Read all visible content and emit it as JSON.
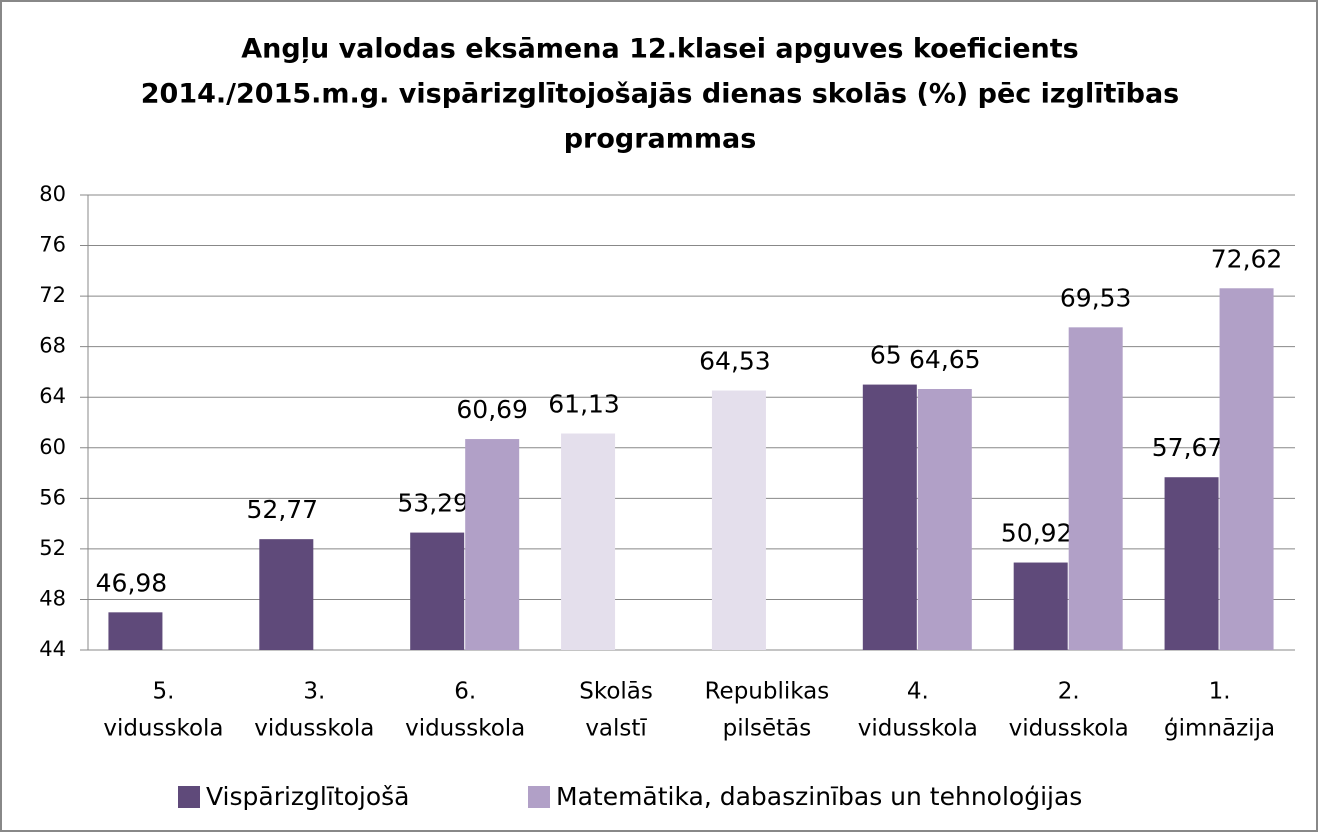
{
  "chart_data": {
    "type": "bar",
    "title": [
      "Angļu valodas eksāmena 12.klasei apguves koeficients",
      "2014./2015.m.g. vispārizglītojošajās dienas skolās (%) pēc izglītības",
      "programmas"
    ],
    "categories": [
      [
        "5.",
        "vidusskola"
      ],
      [
        "3.",
        "vidusskola"
      ],
      [
        "6.",
        "vidusskola"
      ],
      [
        "Skolās",
        "valstī"
      ],
      [
        "Republikas",
        "pilsētās"
      ],
      [
        "4.",
        "vidusskola"
      ],
      [
        "2.",
        "vidusskola"
      ],
      [
        "1.",
        "ģimnāzija"
      ]
    ],
    "series": [
      {
        "name": "Vispārizglītojošā",
        "color": "#5f4a7a",
        "colors": [
          "#5f4a7a",
          "#5f4a7a",
          "#5f4a7a",
          "#e4dfec",
          "#e4dfec",
          "#5f4a7a",
          "#5f4a7a",
          "#5f4a7a"
        ],
        "values": [
          46.98,
          52.77,
          53.29,
          61.13,
          64.53,
          65,
          50.92,
          57.67
        ],
        "value_labels": [
          "46,98",
          "52,77",
          "53,29",
          "61,13",
          "64,53",
          "65",
          "50,92",
          "57,67"
        ]
      },
      {
        "name": "Matemātika, dabaszinības un tehnoloģijas",
        "color": "#b1a0c7",
        "values": [
          null,
          null,
          60.69,
          null,
          null,
          64.65,
          69.53,
          72.62
        ],
        "value_labels": [
          null,
          null,
          "60,69",
          null,
          null,
          "64,65",
          "69,53",
          "72,62"
        ]
      }
    ],
    "ylim": [
      44,
      80
    ],
    "yticks": [
      44,
      48,
      52,
      56,
      60,
      64,
      68,
      72,
      76,
      80
    ],
    "grid": true,
    "legend": "bottom"
  }
}
